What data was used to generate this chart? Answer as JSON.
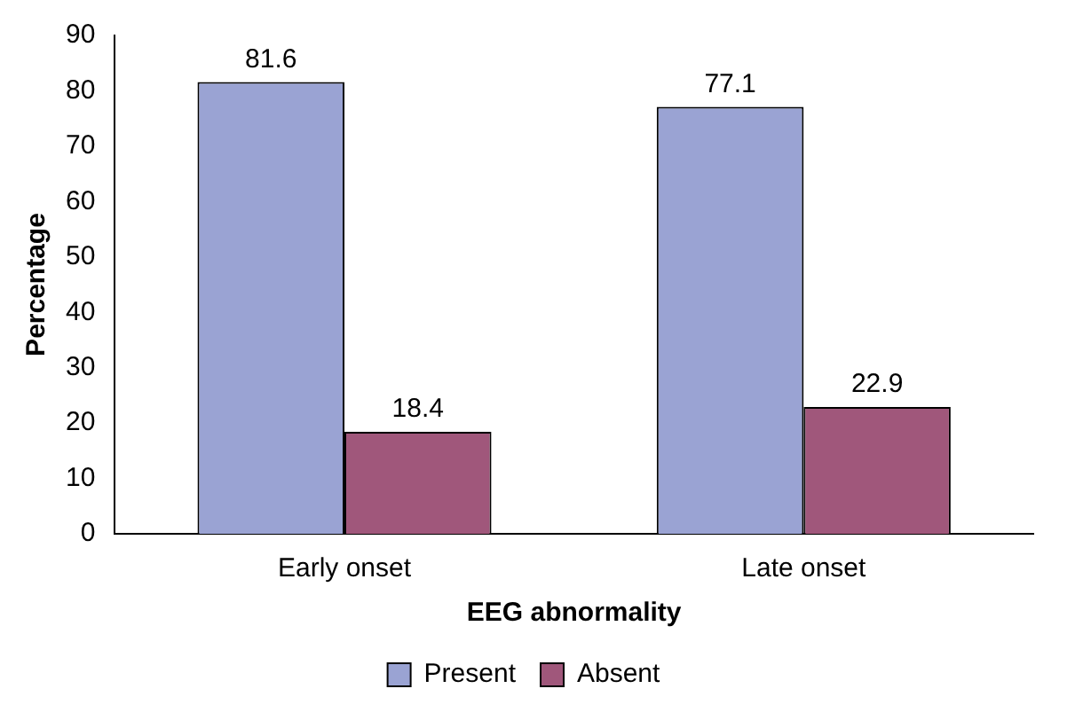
{
  "chart_data": {
    "type": "bar",
    "xlabel": "EEG abnormality",
    "ylabel": "Percentage",
    "categories": [
      "Early onset",
      "Late onset"
    ],
    "series": [
      {
        "name": "Present",
        "color": "#9aa3d3",
        "values": [
          81.6,
          77.1
        ]
      },
      {
        "name": "Absent",
        "color": "#a0577b",
        "values": [
          18.4,
          22.9
        ]
      }
    ],
    "ylim": [
      0,
      90
    ],
    "yticks": [
      0,
      10,
      20,
      30,
      40,
      50,
      60,
      70,
      80,
      90
    ],
    "grid": false,
    "legend": "bottom",
    "data_labels": true
  }
}
